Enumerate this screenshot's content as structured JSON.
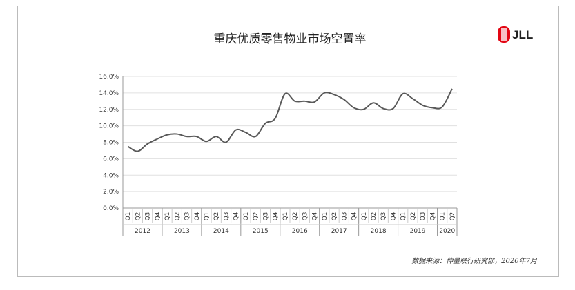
{
  "chart_data": {
    "type": "line",
    "title": "重庆优质零售物业市场空置率",
    "groups": [
      {
        "name": "2012",
        "categories": [
          "Q1",
          "Q2",
          "Q3",
          "Q4"
        ]
      },
      {
        "name": "2013",
        "categories": [
          "Q1",
          "Q2",
          "Q3",
          "Q4"
        ]
      },
      {
        "name": "2014",
        "categories": [
          "Q1",
          "Q2",
          "Q3",
          "Q4"
        ]
      },
      {
        "name": "2015",
        "categories": [
          "Q1",
          "Q2",
          "Q3",
          "Q4"
        ]
      },
      {
        "name": "2016",
        "categories": [
          "Q1",
          "Q2",
          "Q3",
          "Q4"
        ]
      },
      {
        "name": "2017",
        "categories": [
          "Q1",
          "Q2",
          "Q3",
          "Q4"
        ]
      },
      {
        "name": "2018",
        "categories": [
          "Q1",
          "Q2",
          "Q3",
          "Q4"
        ]
      },
      {
        "name": "2019",
        "categories": [
          "Q1",
          "Q2",
          "Q3",
          "Q4"
        ]
      },
      {
        "name": "2020",
        "categories": [
          "Q1",
          "Q2"
        ]
      }
    ],
    "values": [
      7.5,
      6.9,
      7.8,
      8.4,
      8.9,
      9.0,
      8.7,
      8.7,
      8.1,
      8.7,
      8.0,
      9.5,
      9.2,
      8.7,
      10.3,
      10.9,
      13.9,
      13.0,
      13.0,
      12.9,
      14.0,
      13.8,
      13.2,
      12.2,
      12.0,
      12.8,
      12.1,
      12.1,
      13.9,
      13.3,
      12.5,
      12.2,
      12.3,
      14.5
    ],
    "color": "#595959",
    "ylim": [
      0,
      16
    ],
    "yticks": [
      {
        "value": 0,
        "label": "0.0%"
      },
      {
        "value": 2,
        "label": "2.0%"
      },
      {
        "value": 4,
        "label": "4.0%"
      },
      {
        "value": 6,
        "label": "6.0%"
      },
      {
        "value": 8,
        "label": "8.0%"
      },
      {
        "value": 10,
        "label": "10.0%"
      },
      {
        "value": 12,
        "label": "12.0%"
      },
      {
        "value": 14,
        "label": "14.0%"
      },
      {
        "value": 16,
        "label": "16.0%"
      }
    ],
    "grid": true,
    "source": "数据来源：仲量联行研究部，2020年7月"
  },
  "logo": "JLL"
}
